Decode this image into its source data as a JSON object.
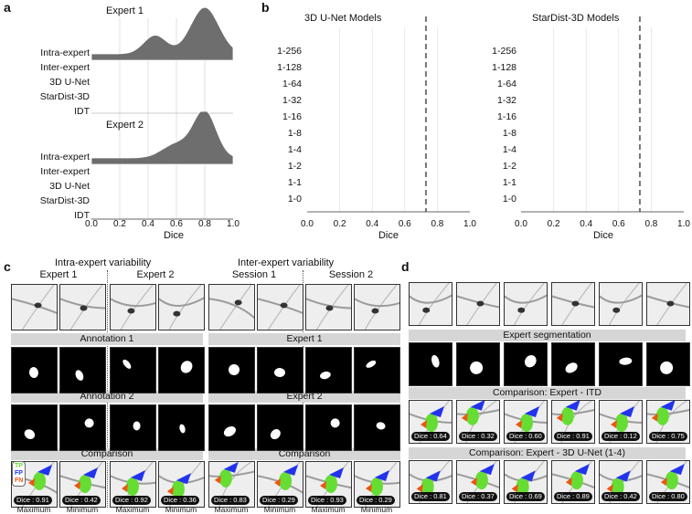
{
  "panel_labels": {
    "a": "a",
    "b": "b",
    "c": "c",
    "d": "d"
  },
  "panel_a": {
    "groups": [
      {
        "title": "Expert 1",
        "rows": [
          "Intra-expert",
          "Inter-expert",
          "3D U-Net",
          "StarDist-3D",
          "IDT"
        ]
      },
      {
        "title": "Expert 2",
        "rows": [
          "Intra-expert",
          "Inter-expert",
          "3D U-Net",
          "StarDist-3D",
          "IDT"
        ]
      }
    ],
    "xticks": [
      "0.0",
      "0.2",
      "0.4",
      "0.6",
      "0.8",
      "1.0"
    ],
    "xlabel": "Dice",
    "fill_color": "#6e6e6e"
  },
  "panel_b": {
    "charts": [
      {
        "title": "3D U-Net Models"
      },
      {
        "title": "StarDist-3D Models"
      }
    ],
    "rows": [
      "1-256",
      "1-128",
      "1-64",
      "1-32",
      "1-16",
      "1-8",
      "1-4",
      "1-2",
      "1-1",
      "1-0"
    ],
    "colors": [
      "#c0392b",
      "#d35400",
      "#e08e0b",
      "#d4b62a",
      "#9cb63a",
      "#4e9a44",
      "#3a9a7a",
      "#3d8aa0",
      "#3a5aa0",
      "#5b3b8f"
    ],
    "xticks": [
      "0.0",
      "0.2",
      "0.4",
      "0.6",
      "0.8",
      "1.0"
    ],
    "xlabel": "Dice",
    "reference_line": 0.73
  },
  "panel_c": {
    "intra_title": "Intra-expert variability",
    "inter_title": "Inter-expert variability",
    "col_headers": [
      "Expert 1",
      "Expert 2",
      "Session 1",
      "Session 2"
    ],
    "bar_left": [
      "Annotation 1",
      "Annotation 2",
      "Comparison"
    ],
    "bar_right": [
      "Expert 1",
      "Expert 2",
      "Comparison"
    ],
    "legend": {
      "tp": "TP",
      "fp": "FP",
      "fn": "FN"
    },
    "legend_colors": {
      "tp": "#66dd33",
      "fp": "#2233ee",
      "fn": "#ee5511"
    },
    "dice": [
      "Dice : 0.91",
      "Dice : 0.42",
      "Dice : 0.92",
      "Dice : 0.36",
      "Dice : 0.83",
      "Dice : 0.29",
      "Dice : 0.93",
      "Dice : 0.29"
    ],
    "footers": [
      "Maximum",
      "Minimum",
      "Maximum",
      "Minimum",
      "Maximum",
      "Minimum",
      "Maximum",
      "Minimum"
    ]
  },
  "panel_d": {
    "bars": [
      "Expert segmentation",
      "Comparison: Expert - ITD",
      "Comparison: Expert - 3D U-Net (1-4)"
    ],
    "dice_itd": [
      "Dice : 0.64",
      "Dice : 0.32",
      "Dice : 0.60",
      "Dice : 0.91",
      "Dice : 0.12",
      "Dice : 0.75"
    ],
    "dice_unet": [
      "Dice : 0.81",
      "Dice : 0.37",
      "Dice : 0.69",
      "Dice : 0.89",
      "Dice : 0.42",
      "Dice : 0.80"
    ]
  }
}
